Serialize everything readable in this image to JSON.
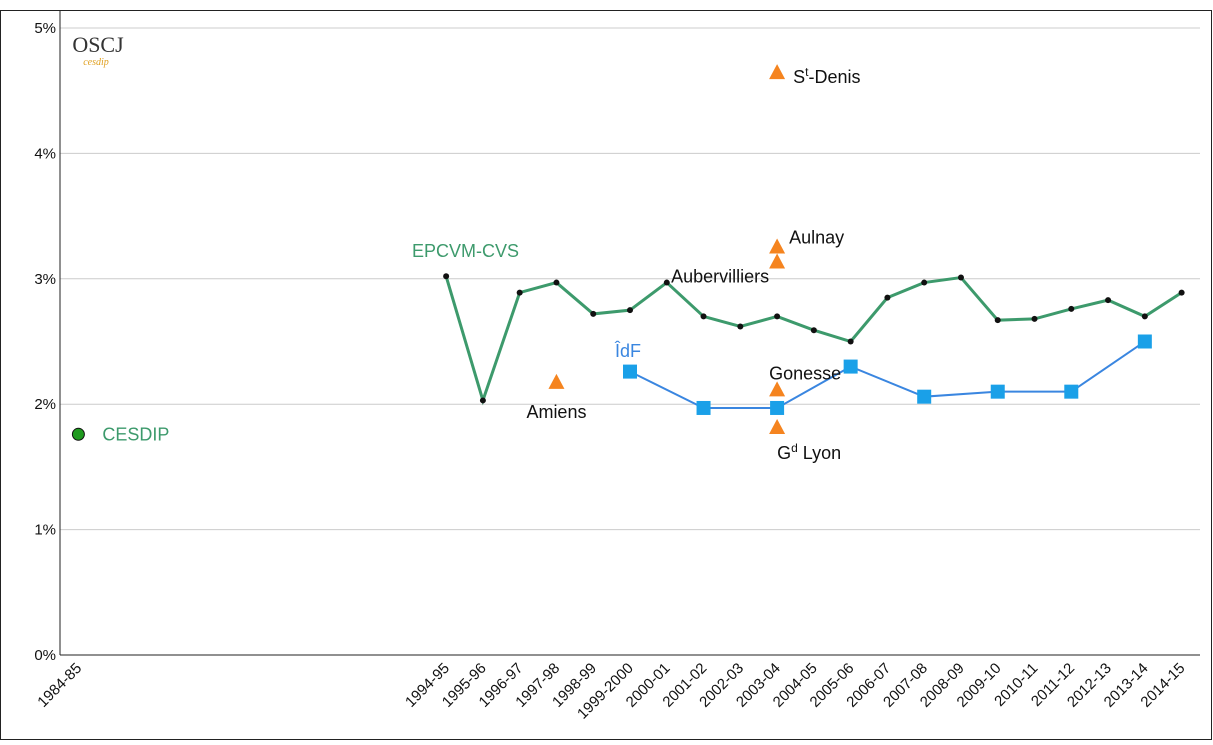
{
  "chart_data": {
    "type": "line",
    "logo": {
      "title": "OSCJ",
      "subtitle": "cesdip"
    },
    "categories": [
      "1984-85",
      null,
      null,
      null,
      null,
      null,
      null,
      null,
      null,
      null,
      "1994-95",
      "1995-96",
      "1996-97",
      "1997-98",
      "1998-99",
      "1999-2000",
      "2000-01",
      "2001-02",
      "2002-03",
      "2003-04",
      "2004-05",
      "2005-06",
      "2006-07",
      "2007-08",
      "2008-09",
      "2009-10",
      "2010-11",
      "2011-12",
      "2012-13",
      "2013-14",
      "2014-15"
    ],
    "ylim": [
      0,
      5
    ],
    "yticks": [
      {
        "value": 0,
        "label": "0%"
      },
      {
        "value": 1,
        "label": "1%"
      },
      {
        "value": 2,
        "label": "2%"
      },
      {
        "value": 3,
        "label": "3%"
      },
      {
        "value": 4,
        "label": "4%"
      },
      {
        "value": 5,
        "label": "5%"
      }
    ],
    "grid": true,
    "series": [
      {
        "name": "EPCVM-CVS",
        "color": "#3d9a6c",
        "marker_color": "#111111",
        "values": [
          null,
          null,
          null,
          null,
          null,
          null,
          null,
          null,
          null,
          null,
          3.02,
          2.03,
          2.89,
          2.97,
          2.72,
          2.75,
          2.97,
          2.7,
          2.62,
          2.7,
          2.59,
          2.5,
          2.85,
          2.97,
          3.01,
          2.67,
          2.68,
          2.76,
          2.83,
          2.7,
          2.89
        ]
      },
      {
        "name": "ÎdF",
        "color": "#3a86e0",
        "marker_color": "#1aa0e8",
        "x": [
          "1999-2000",
          "2001-02",
          "2003-04",
          "2005-06",
          "2007-08",
          "2009-10",
          "2011-12",
          "2013-14"
        ],
        "values": [
          2.26,
          1.97,
          1.97,
          2.3,
          2.06,
          2.1,
          2.1,
          2.5
        ]
      }
    ],
    "single_points": [
      {
        "name": "CESDIP",
        "x": "1984-85",
        "value": 1.76,
        "color": "#1f9a1f"
      }
    ],
    "sites": {
      "color": "#f5841f",
      "points": [
        {
          "label": [
            "Amiens"
          ],
          "x": "1997-98",
          "value": 2.17
        },
        {
          "label": [
            "S",
            "t",
            "-Denis"
          ],
          "x": "2003-04",
          "value": 4.64
        },
        {
          "label": [
            "Aulnay"
          ],
          "x": "2003-04",
          "value": 3.25
        },
        {
          "label": [
            "Aubervilliers"
          ],
          "x": "2003-04",
          "value": 3.13
        },
        {
          "label": [
            "Gonesse"
          ],
          "x": "2003-04",
          "value": 2.11
        },
        {
          "label": [
            "G",
            "d",
            " Lyon"
          ],
          "x": "2003-04",
          "value": 1.81
        }
      ]
    }
  }
}
